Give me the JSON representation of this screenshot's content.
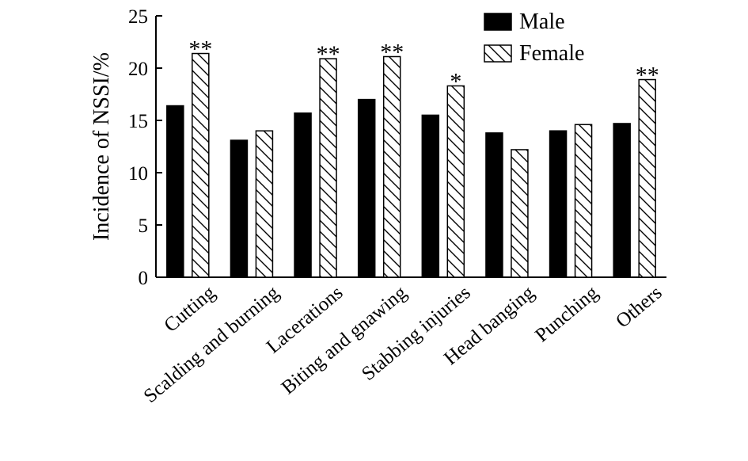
{
  "chart_data": {
    "type": "bar",
    "ylabel": "Incidence of NSSI/%",
    "ylim": [
      0,
      25
    ],
    "yticks": [
      "0",
      "5",
      "10",
      "15",
      "20",
      "25"
    ],
    "categories": [
      "Cutting",
      "Scalding and burning",
      "Lacerations",
      "Biting and gnawing",
      "Stabbing injuries",
      "Head banging",
      "Punching",
      "Others"
    ],
    "series": [
      {
        "name": "Male",
        "values": [
          16.4,
          13.1,
          15.7,
          17.0,
          15.5,
          13.8,
          14.0,
          14.7
        ],
        "fill": "solid",
        "color": "#000000"
      },
      {
        "name": "Female",
        "values": [
          21.4,
          14.0,
          20.9,
          21.1,
          18.3,
          12.2,
          14.6,
          18.9
        ],
        "fill": "hatched",
        "color": "#000000"
      }
    ],
    "annotations": [
      "**",
      "",
      "**",
      "**",
      "*",
      "",
      "",
      "**"
    ],
    "legend_position": "top-right",
    "grid": false
  }
}
